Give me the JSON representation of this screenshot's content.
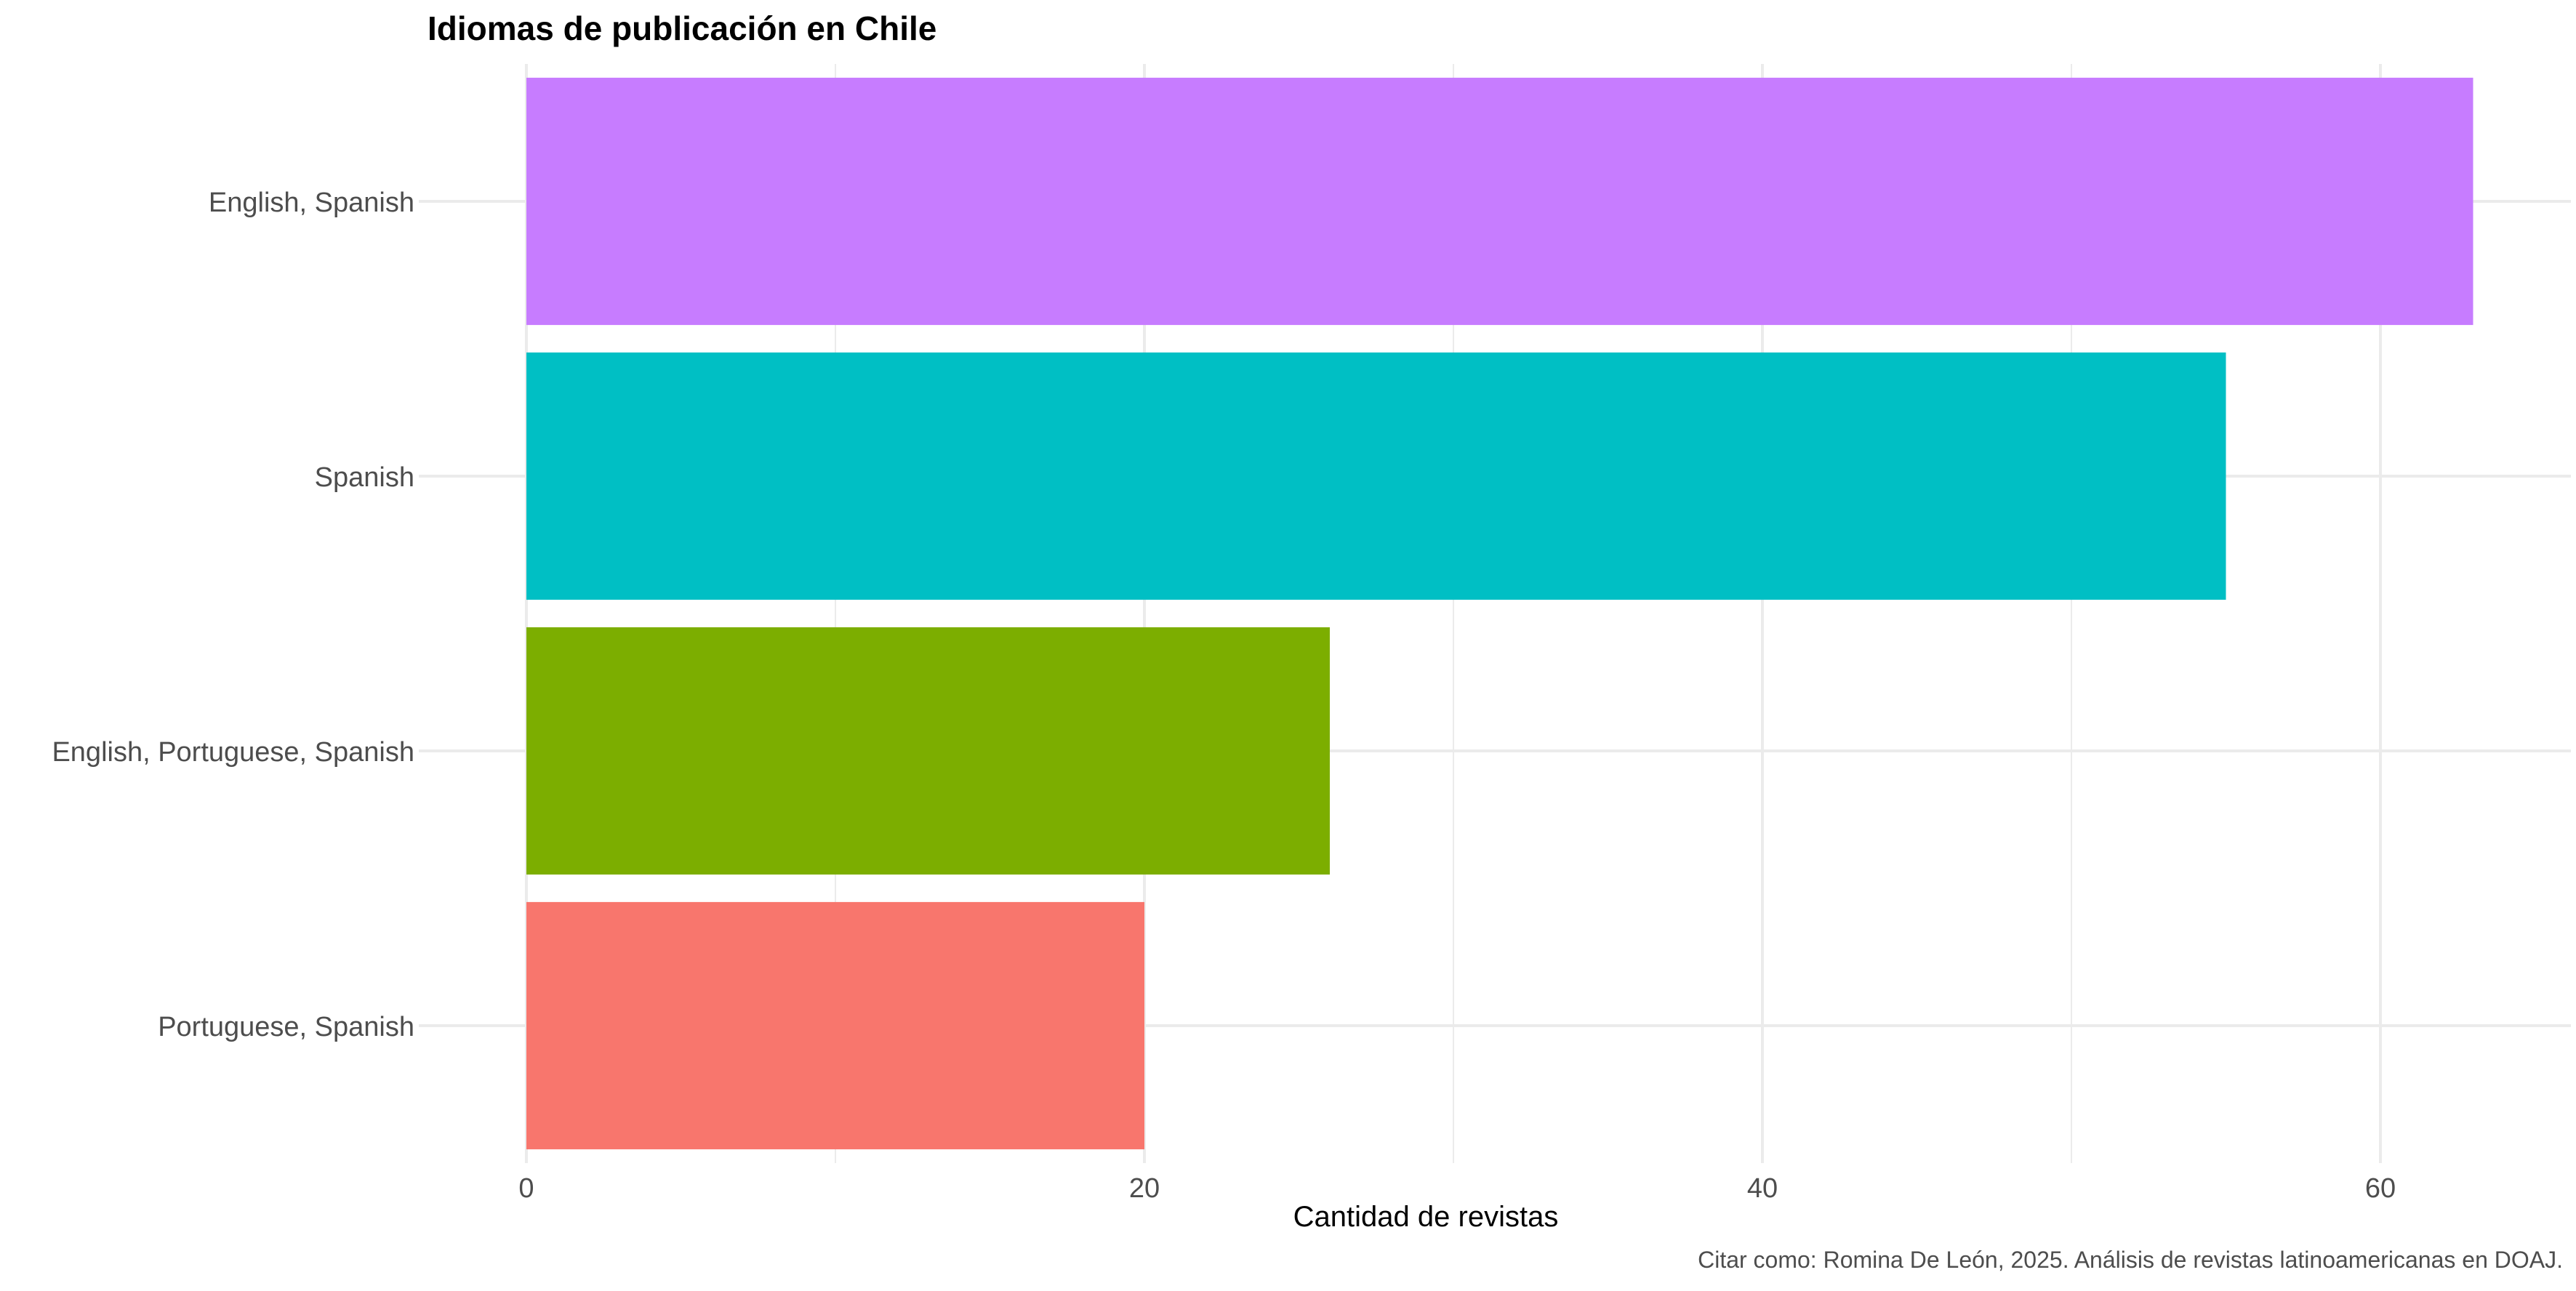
{
  "chart_data": {
    "type": "bar",
    "orientation": "horizontal",
    "title": "Idiomas de publicación en Chile",
    "xlabel": "Cantidad de revistas",
    "ylabel": "",
    "caption": "Citar como: Romina De León, 2025. Análisis de revistas latinoamericanas en DOAJ.",
    "categories": [
      "English, Spanish",
      "Spanish",
      "English, Portuguese, Spanish",
      "Portuguese, Spanish"
    ],
    "values": [
      63,
      55,
      26,
      20
    ],
    "colors": [
      "#C77CFF",
      "#00BFC4",
      "#7CAE00",
      "#F8766D"
    ],
    "xlim": [
      0,
      66
    ],
    "xticks": [
      0,
      20,
      40,
      60
    ],
    "xtick_labels": [
      "0",
      "20",
      "40",
      "60"
    ],
    "grid": true,
    "legend": "none"
  }
}
